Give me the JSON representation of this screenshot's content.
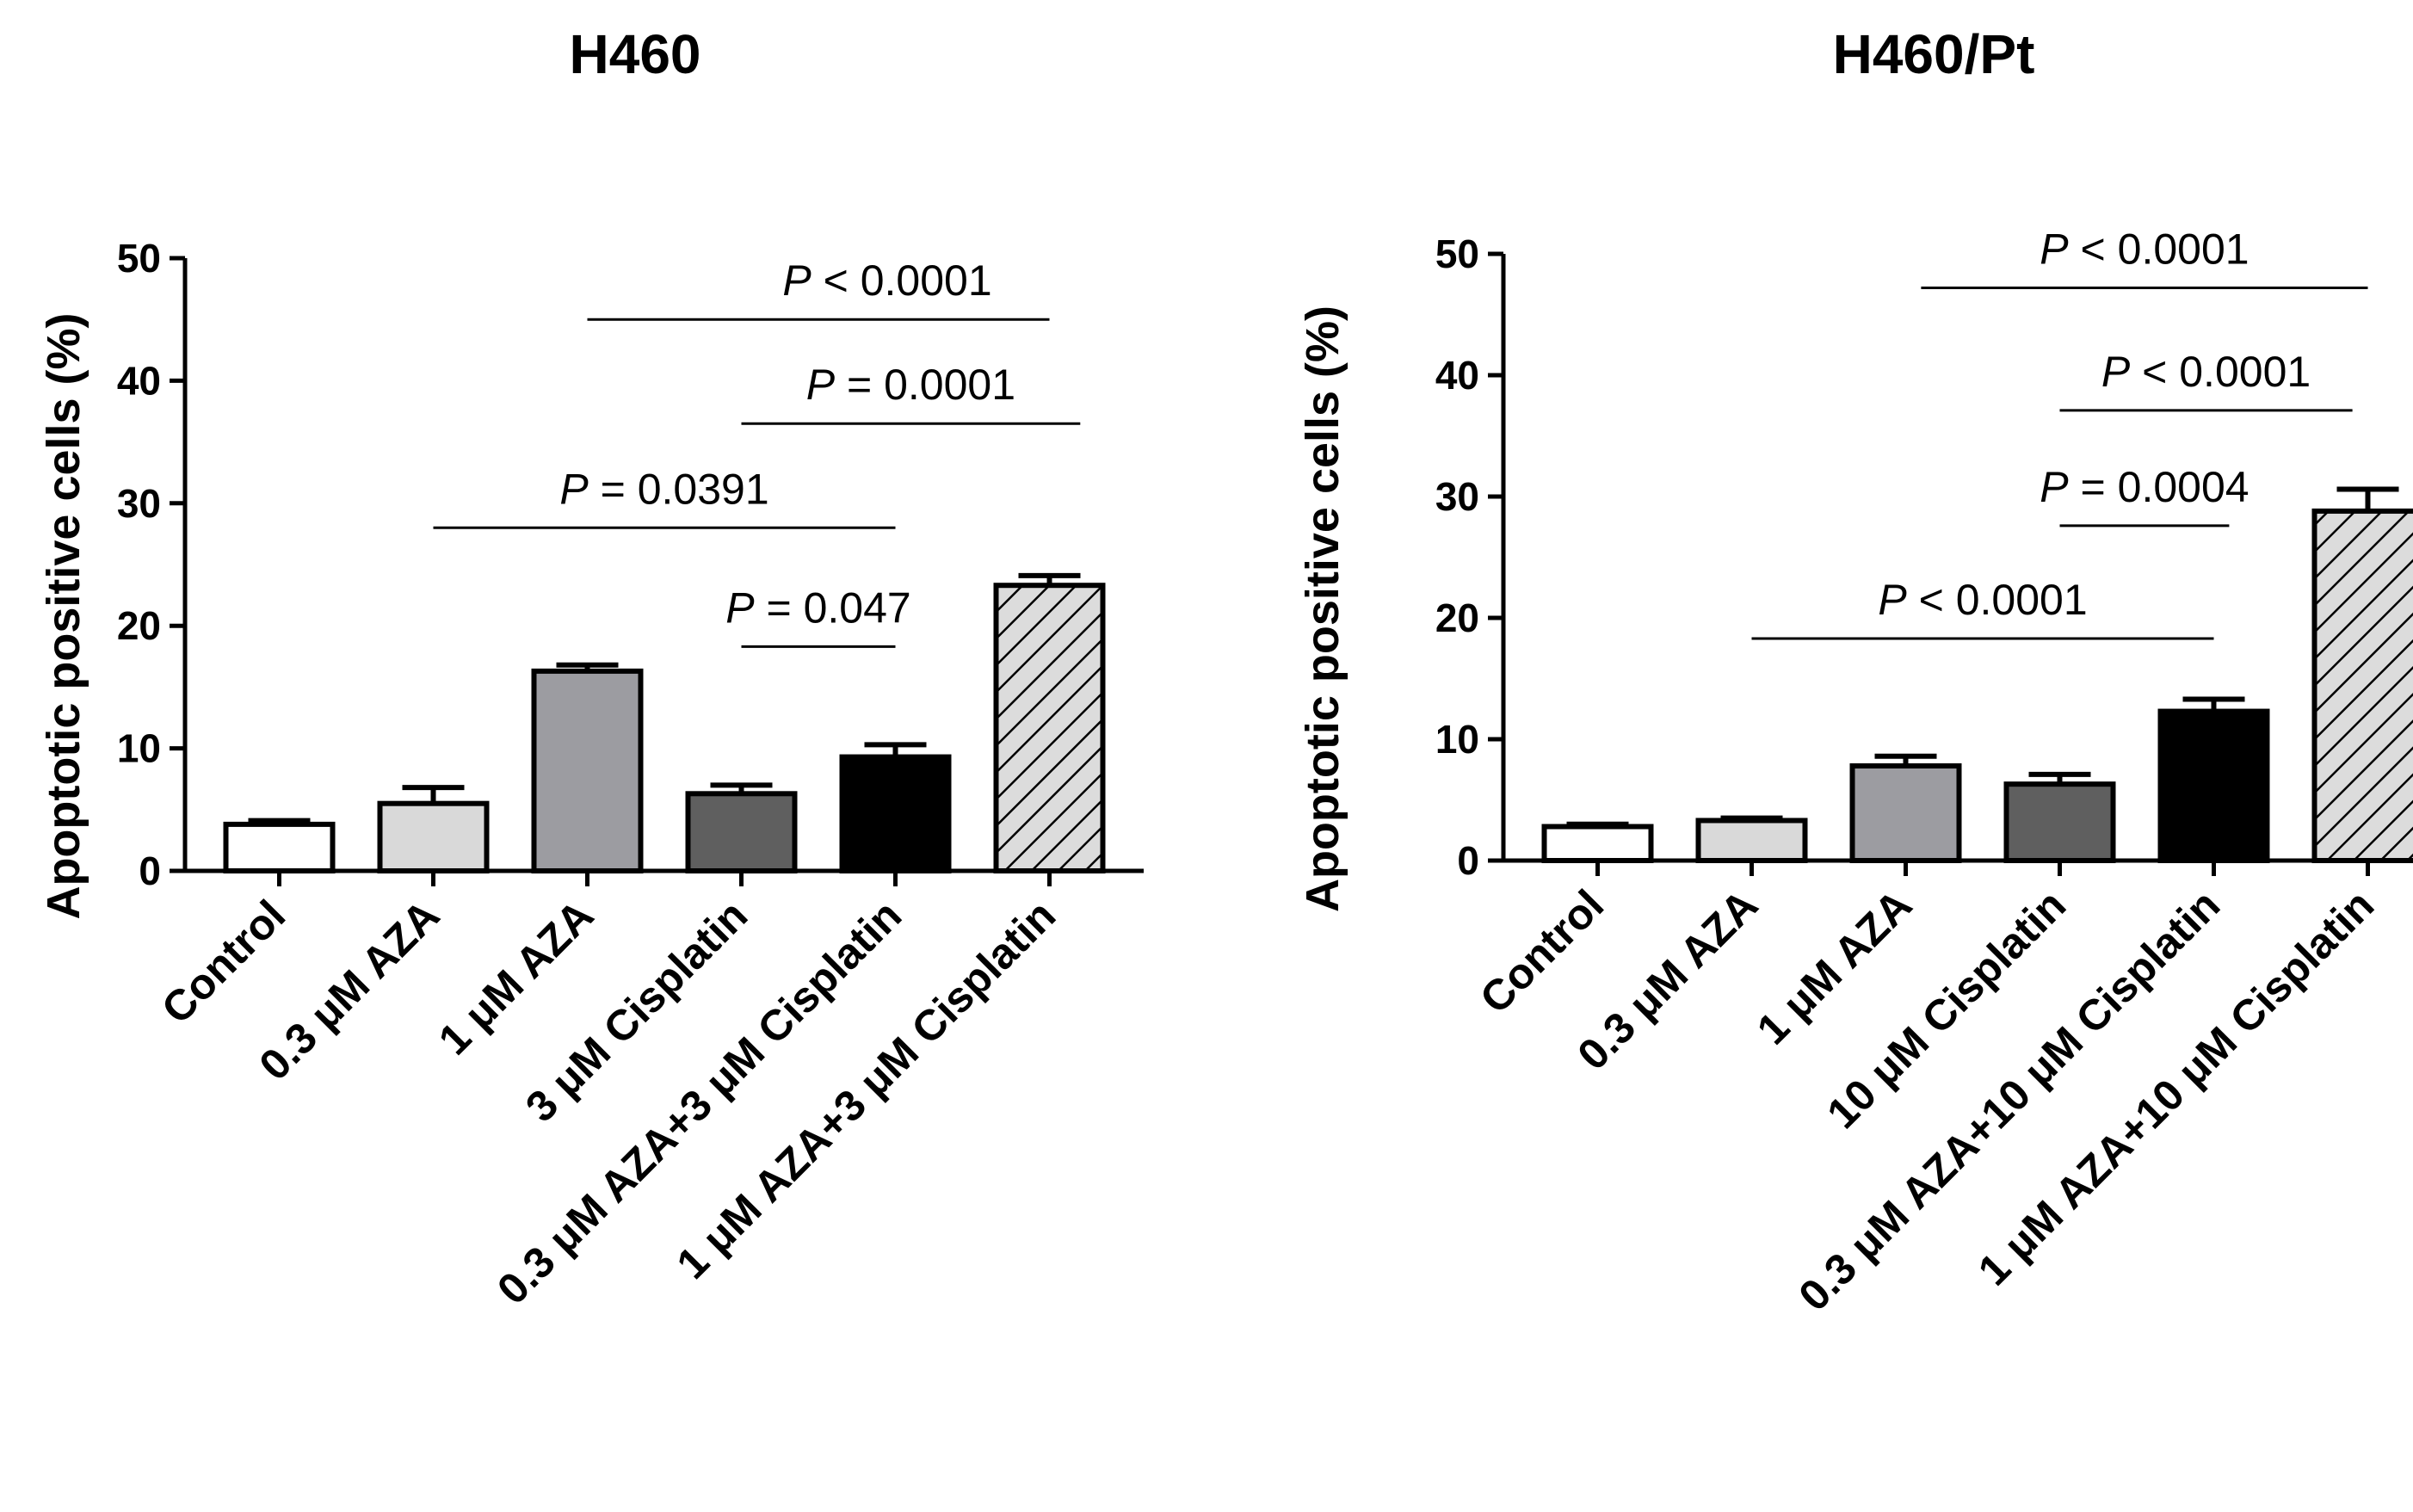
{
  "chart_data": [
    {
      "type": "bar",
      "title": "H460",
      "ylabel": "Apoptotic positive cells (%)",
      "ylim": [
        0,
        50
      ],
      "yticks": [
        0,
        10,
        20,
        30,
        40,
        50
      ],
      "categories": [
        "Control",
        "0.3 μM AZA",
        "1 μM AZA",
        "3 μM Cisplatin",
        "0.3 μM AZA+3 μM Cisplatin",
        "1 μM AZA+3 μM Cisplatin"
      ],
      "values": [
        3.8,
        5.5,
        16.3,
        6.3,
        9.3,
        23.3
      ],
      "errors": [
        0.3,
        1.3,
        0.5,
        0.7,
        1.0,
        0.8
      ],
      "fills": [
        "#ffffff",
        "#d9d9d9",
        "#9c9ca1",
        "#5f5f5f",
        "#000000",
        "hatch"
      ],
      "annotations": [
        {
          "prefix": "P",
          "text": " < 0.0001",
          "from": 2,
          "to": 5,
          "y": 45
        },
        {
          "prefix": "P",
          "text": " = 0.0001",
          "from": 3,
          "to": 5.2,
          "y": 36.5
        },
        {
          "prefix": "P",
          "text": " = 0.0391",
          "from": 1,
          "to": 4,
          "y": 28
        },
        {
          "prefix": "P",
          "text": " = 0.047",
          "from": 3,
          "to": 4,
          "y": 18.3
        }
      ]
    },
    {
      "type": "bar",
      "title": "H460/Pt",
      "ylabel": "Apoptotic positive cells (%)",
      "ylim": [
        0,
        50
      ],
      "yticks": [
        0,
        10,
        20,
        30,
        40,
        50
      ],
      "categories": [
        "Control",
        "0.3 μM AZA",
        "1 μM AZA",
        "10 μM Cisplatin",
        "0.3 μM AZA+10 μM Cisplatin",
        "1 μM AZA+10 μM Cisplatin"
      ],
      "values": [
        2.8,
        3.3,
        7.8,
        6.3,
        12.3,
        28.8
      ],
      "errors": [
        0.2,
        0.2,
        0.8,
        0.8,
        1.0,
        1.8
      ],
      "fills": [
        "#ffffff",
        "#d9d9d9",
        "#9c9ca1",
        "#5f5f5f",
        "#000000",
        "hatch"
      ],
      "annotations": [
        {
          "prefix": "P",
          "text": " < 0.0001",
          "from": 2.1,
          "to": 5,
          "y": 47.2
        },
        {
          "prefix": "P",
          "text": " < 0.0001",
          "from": 3,
          "to": 4.9,
          "y": 37.1
        },
        {
          "prefix": "P",
          "text": " = 0.0004",
          "from": 3,
          "to": 4.1,
          "y": 27.6
        },
        {
          "prefix": "P",
          "text": " < 0.0001",
          "from": 1,
          "to": 4,
          "y": 18.3
        }
      ]
    }
  ]
}
